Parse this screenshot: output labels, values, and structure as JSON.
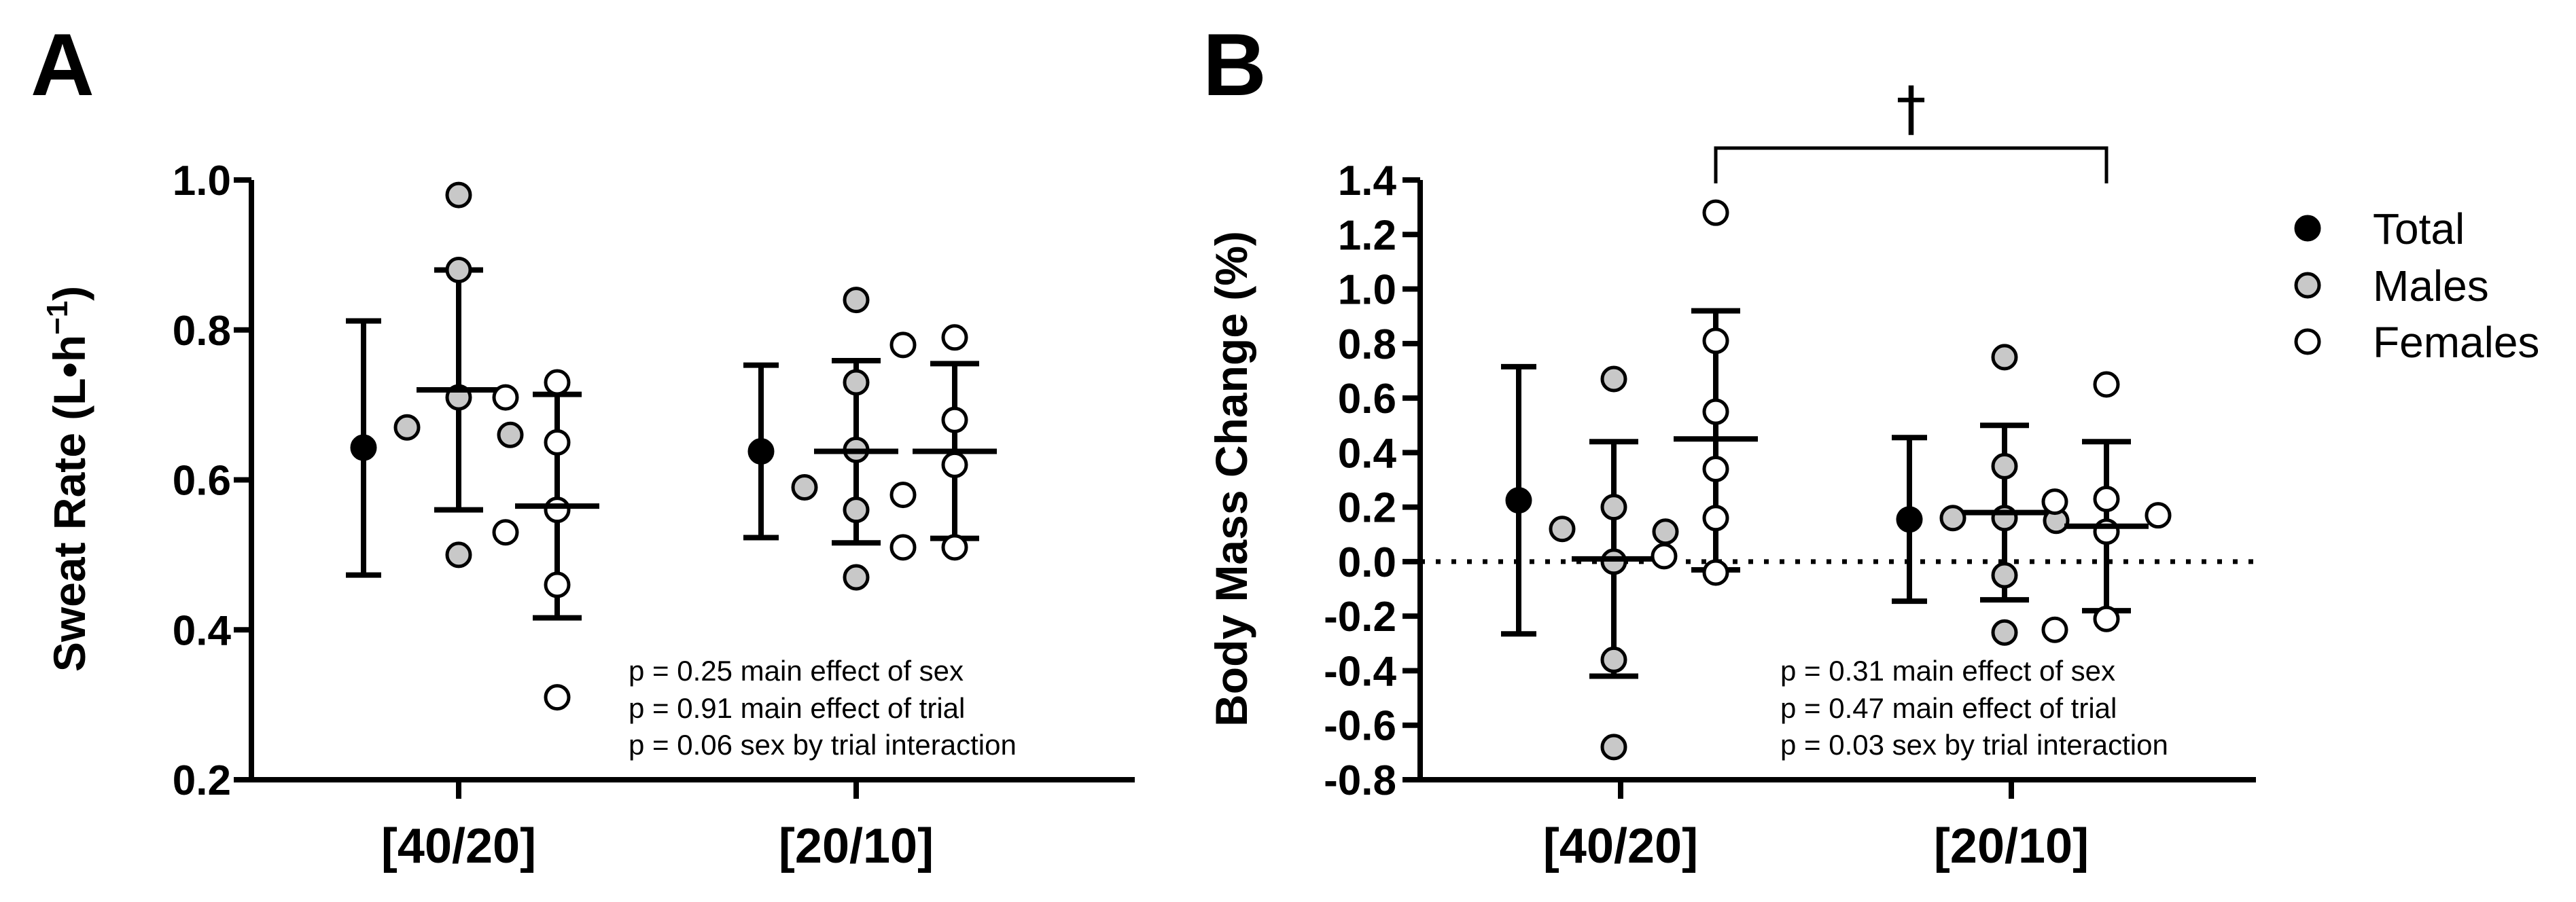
{
  "chart_data": [
    {
      "panel": "A",
      "type": "scatter",
      "categories": [
        "[40/20]",
        "[20/10]"
      ],
      "ylabel": "Sweat Rate (L•h",
      "ylabel_sup": "−1",
      "ylabel_end": ")",
      "ylim": [
        0.2,
        1.0
      ],
      "yticks": [
        0.2,
        0.4,
        0.6,
        0.8,
        1.0
      ],
      "ytick_labels": [
        "0.2",
        "0.4",
        "0.6",
        "0.8",
        "1.0"
      ],
      "zero_line": false,
      "series": [
        {
          "name": "Total",
          "groups": [
            {
              "category": "[40/20]",
              "mean": 0.643,
              "sd_low": 0.473,
              "sd_high": 0.812,
              "points": []
            },
            {
              "category": "[20/10]",
              "mean": 0.638,
              "sd_low": 0.523,
              "sd_high": 0.753,
              "points": []
            }
          ]
        },
        {
          "name": "Males",
          "groups": [
            {
              "category": "[40/20]",
              "mean": 0.72,
              "sd_low": 0.56,
              "sd_high": 0.88,
              "points": [
                0.98,
                0.88,
                0.71,
                0.67,
                0.66,
                0.5
              ]
            },
            {
              "category": "[20/10]",
              "mean": 0.638,
              "sd_low": 0.516,
              "sd_high": 0.759,
              "points": [
                0.84,
                0.73,
                0.64,
                0.59,
                0.56,
                0.47
              ]
            }
          ]
        },
        {
          "name": "Females",
          "groups": [
            {
              "category": "[40/20]",
              "mean": 0.565,
              "sd_low": 0.416,
              "sd_high": 0.714,
              "points": [
                0.73,
                0.71,
                0.65,
                0.56,
                0.53,
                0.46,
                0.31
              ]
            },
            {
              "category": "[20/10]",
              "mean": 0.638,
              "sd_low": 0.522,
              "sd_high": 0.755,
              "points": [
                0.79,
                0.78,
                0.68,
                0.62,
                0.58,
                0.51,
                0.51
              ]
            }
          ]
        }
      ],
      "annotations": [
        "p = 0.25 main effect of sex",
        "p = 0.91 main effect of trial",
        "p = 0.06 sex by trial interaction"
      ]
    },
    {
      "panel": "B",
      "type": "scatter",
      "categories": [
        "[40/20]",
        "[20/10]"
      ],
      "ylabel": "Body Mass Change  (%)",
      "ylim": [
        -0.8,
        1.4
      ],
      "yticks": [
        -0.8,
        -0.6,
        -0.4,
        -0.2,
        0.0,
        0.2,
        0.4,
        0.6,
        0.8,
        1.0,
        1.2,
        1.4
      ],
      "ytick_labels": [
        "-0.8",
        "-0.6",
        "-0.4",
        "-0.2",
        "0.0",
        "0.2",
        "0.4",
        "0.6",
        "0.8",
        "1.0",
        "1.2",
        "1.4"
      ],
      "zero_line": true,
      "series": [
        {
          "name": "Total",
          "groups": [
            {
              "category": "[40/20]",
              "mean": 0.225,
              "sd_low": -0.265,
              "sd_high": 0.715,
              "points": []
            },
            {
              "category": "[20/10]",
              "mean": 0.155,
              "sd_low": -0.145,
              "sd_high": 0.455,
              "points": []
            }
          ]
        },
        {
          "name": "Males",
          "groups": [
            {
              "category": "[40/20]",
              "mean": 0.01,
              "sd_low": -0.42,
              "sd_high": 0.44,
              "points": [
                0.67,
                0.2,
                0.12,
                0.11,
                0.0,
                -0.36,
                -0.68
              ]
            },
            {
              "category": "[20/10]",
              "mean": 0.18,
              "sd_low": -0.14,
              "sd_high": 0.5,
              "points": [
                0.75,
                0.35,
                0.16,
                0.16,
                0.15,
                -0.05,
                -0.26
              ]
            }
          ]
        },
        {
          "name": "Females",
          "groups": [
            {
              "category": "[40/20]",
              "mean": 0.45,
              "sd_low": -0.03,
              "sd_high": 0.92,
              "points": [
                1.28,
                0.81,
                0.55,
                0.34,
                0.16,
                0.02,
                -0.04
              ]
            },
            {
              "category": "[20/10]",
              "mean": 0.13,
              "sd_low": -0.18,
              "sd_high": 0.44,
              "points": [
                0.65,
                0.23,
                0.22,
                0.17,
                0.11,
                -0.21,
                -0.25
              ]
            }
          ]
        }
      ],
      "annotations": [
        "p = 0.31 main effect of sex",
        "p = 0.47 main effect of trial",
        "p = 0.03 sex by trial interaction"
      ],
      "significance_bracket": {
        "from": "Females [40/20]",
        "to": "Females [20/10]",
        "symbol": "†"
      }
    }
  ],
  "legend": {
    "placement": "right",
    "items": [
      {
        "name": "Total",
        "fill": "#000000"
      },
      {
        "name": "Males",
        "fill": "#c8c8c8"
      },
      {
        "name": "Females",
        "fill": "#ffffff"
      }
    ]
  },
  "colors": {
    "axis": "#000000",
    "total": "#000000",
    "males": "#c8c8c8",
    "females": "#ffffff"
  }
}
